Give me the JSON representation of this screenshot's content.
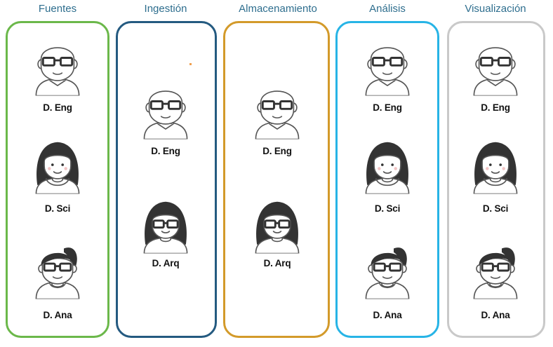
{
  "columns": [
    {
      "title": "Fuentes",
      "border_color": "#6bb84a",
      "people": [
        {
          "label": "D. Eng",
          "avatar": "bald-glasses-man-icon"
        },
        {
          "label": "D. Sci",
          "avatar": "long-hair-woman-icon"
        },
        {
          "label": "D. Ana",
          "avatar": "ponytail-glasses-woman-icon"
        }
      ]
    },
    {
      "title": "Ingestión",
      "border_color": "#245a80",
      "people": [
        {
          "label": "D. Eng",
          "avatar": "bald-glasses-man-icon"
        },
        {
          "label": "D. Arq",
          "avatar": "long-hair-glasses-woman-icon"
        }
      ]
    },
    {
      "title": "Almacenamiento",
      "border_color": "#d39a2a",
      "people": [
        {
          "label": "D. Eng",
          "avatar": "bald-glasses-man-icon"
        },
        {
          "label": "D. Arq",
          "avatar": "long-hair-glasses-woman-icon"
        }
      ]
    },
    {
      "title": "Análisis",
      "border_color": "#27b4e6",
      "people": [
        {
          "label": "D. Eng",
          "avatar": "bald-glasses-man-icon"
        },
        {
          "label": "D. Sci",
          "avatar": "long-hair-woman-icon"
        },
        {
          "label": "D. Ana",
          "avatar": "ponytail-glasses-woman-icon"
        }
      ]
    },
    {
      "title": "Visualización",
      "border_color": "#c9c9c9",
      "people": [
        {
          "label": "D. Eng",
          "avatar": "bald-glasses-man-icon"
        },
        {
          "label": "D. Sci",
          "avatar": "long-hair-woman-icon"
        },
        {
          "label": "D. Ana",
          "avatar": "ponytail-glasses-woman-icon"
        }
      ]
    }
  ]
}
